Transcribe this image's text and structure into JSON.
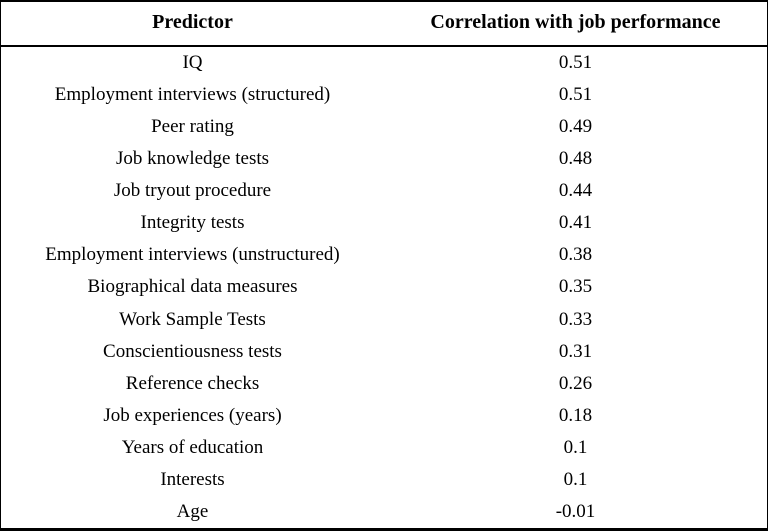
{
  "colors": {
    "background": "#ffffff",
    "text": "#000000",
    "border": "#000000"
  },
  "table": {
    "columns": [
      "Predictor",
      "Correlation with job performance"
    ],
    "rows": [
      [
        "IQ",
        "0.51"
      ],
      [
        "Employment interviews (structured)",
        "0.51"
      ],
      [
        "Peer rating",
        "0.49"
      ],
      [
        "Job knowledge tests",
        "0.48"
      ],
      [
        "Job tryout procedure",
        "0.44"
      ],
      [
        "Integrity tests",
        "0.41"
      ],
      [
        "Employment interviews (unstructured)",
        "0.38"
      ],
      [
        "Biographical data measures",
        "0.35"
      ],
      [
        "Work Sample Tests",
        "0.33"
      ],
      [
        "Conscientiousness tests",
        "0.31"
      ],
      [
        "Reference checks",
        "0.26"
      ],
      [
        "Job experiences (years)",
        "0.18"
      ],
      [
        "Years of education",
        "0.1"
      ],
      [
        "Interests",
        "0.1"
      ],
      [
        "Age",
        "-0.01"
      ]
    ]
  },
  "chart_data": {
    "type": "table",
    "columns": [
      "Predictor",
      "Correlation with job performance"
    ],
    "predictors": [
      "IQ",
      "Employment interviews (structured)",
      "Peer rating",
      "Job knowledge tests",
      "Job tryout procedure",
      "Integrity tests",
      "Employment interviews (unstructured)",
      "Biographical data measures",
      "Work Sample Tests",
      "Conscientiousness tests",
      "Reference checks",
      "Job experiences (years)",
      "Years of education",
      "Interests",
      "Age"
    ],
    "correlations": [
      0.51,
      0.51,
      0.49,
      0.48,
      0.44,
      0.41,
      0.38,
      0.35,
      0.33,
      0.31,
      0.26,
      0.18,
      0.1,
      0.1,
      -0.01
    ]
  }
}
